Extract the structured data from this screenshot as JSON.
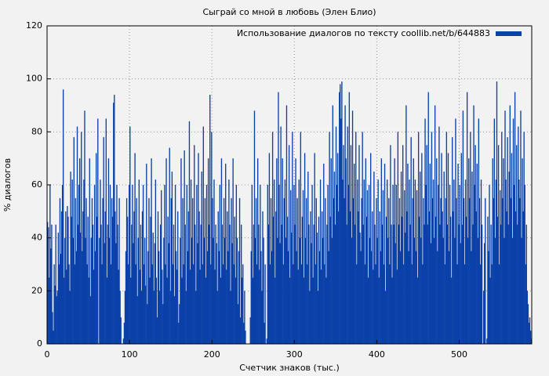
{
  "chart_data": {
    "type": "bar",
    "title": "Сыграй со мной в любовь (Элен Блио)",
    "x_label": "Счетчик знаков (тыс.)",
    "y_label": "% диалогов",
    "xlim": [
      0,
      588
    ],
    "xticks": [
      0,
      100,
      200,
      300,
      400,
      500
    ],
    "ylim": [
      0,
      120
    ],
    "yticks": [
      0,
      20,
      40,
      60,
      80,
      100,
      120
    ],
    "grid": true,
    "legend_position": "upper right",
    "series": [
      {
        "name": "Использование диалогов по тексту coollib.net/b/644883",
        "color": "#0b41a8",
        "values": [
          46,
          44,
          25,
          60,
          36,
          45,
          12,
          5,
          30,
          22,
          45,
          18,
          20,
          42,
          30,
          55,
          34,
          50,
          60,
          96,
          25,
          40,
          50,
          28,
          52,
          48,
          30,
          20,
          65,
          48,
          62,
          40,
          78,
          30,
          55,
          35,
          82,
          45,
          60,
          70,
          42,
          80,
          35,
          50,
          62,
          88,
          40,
          55,
          30,
          48,
          25,
          70,
          18,
          40,
          55,
          45,
          28,
          60,
          35,
          72,
          48,
          85,
          0,
          40,
          62,
          45,
          30,
          55,
          78,
          38,
          50,
          85,
          25,
          45,
          70,
          40,
          60,
          30,
          55,
          48,
          91,
          94,
          50,
          38,
          60,
          45,
          28,
          55,
          20,
          10,
          0,
          0,
          2,
          8,
          20,
          35,
          55,
          48,
          30,
          60,
          82,
          25,
          45,
          60,
          38,
          50,
          72,
          30,
          55,
          18,
          40,
          62,
          28,
          45,
          20,
          50,
          60,
          30,
          40,
          22,
          68,
          15,
          35,
          55,
          25,
          48,
          70,
          30,
          42,
          20,
          38,
          62,
          25,
          10,
          50,
          35,
          20,
          45,
          58,
          28,
          15,
          40,
          60,
          30,
          70,
          25,
          48,
          38,
          74,
          20,
          55,
          65,
          30,
          45,
          18,
          60,
          35,
          28,
          50,
          8,
          15,
          40,
          70,
          25,
          55,
          30,
          73,
          45,
          20,
          60,
          35,
          50,
          84,
          28,
          62,
          40,
          55,
          30,
          75,
          45,
          20,
          60,
          38,
          72,
          50,
          28,
          45,
          65,
          30,
          82,
          40,
          55,
          25,
          60,
          35,
          70,
          45,
          94,
          30,
          80,
          55,
          40,
          62,
          28,
          45,
          38,
          20,
          50,
          35,
          60,
          25,
          70,
          45,
          30,
          55,
          40,
          68,
          28,
          50,
          35,
          62,
          45,
          20,
          55,
          38,
          70,
          30,
          48,
          25,
          60,
          40,
          15,
          35,
          55,
          10,
          45,
          25,
          30,
          8,
          20,
          5,
          0,
          0,
          0,
          0,
          0,
          10,
          35,
          60,
          25,
          45,
          88,
          40,
          55,
          30,
          70,
          45,
          28,
          60,
          35,
          20,
          50,
          40,
          8,
          30,
          0,
          2,
          60,
          45,
          72,
          30,
          55,
          35,
          80,
          48,
          62,
          25,
          50,
          70,
          40,
          95,
          60,
          38,
          82,
          45,
          70,
          30,
          55,
          62,
          40,
          90,
          48,
          35,
          75,
          25,
          58,
          42,
          80,
          30,
          60,
          45,
          70,
          35,
          55,
          28,
          62,
          40,
          80,
          30,
          48,
          58,
          25,
          72,
          40,
          55,
          30,
          65,
          45,
          20,
          50,
          38,
          60,
          25,
          45,
          72,
          30,
          55,
          42,
          20,
          48,
          35,
          62,
          28,
          50,
          40,
          68,
          30,
          55,
          25,
          45,
          60,
          35,
          80,
          48,
          70,
          40,
          90,
          55,
          65,
          45,
          82,
          60,
          72,
          50,
          95,
          98,
          85,
          99,
          62,
          75,
          55,
          90,
          70,
          45,
          82,
          60,
          95,
          50,
          75,
          40,
          88,
          55,
          68,
          45,
          80,
          30,
          62,
          50,
          75,
          42,
          35,
          55,
          80,
          45,
          62,
          30,
          70,
          48,
          58,
          25,
          60,
          40,
          72,
          35,
          50,
          28,
          65,
          45,
          30,
          55,
          40,
          62,
          25,
          50,
          35,
          70,
          45,
          58,
          30,
          68,
          20,
          48,
          62,
          40,
          55,
          30,
          75,
          45,
          25,
          60,
          45,
          70,
          38,
          60,
          28,
          80,
          45,
          55,
          35,
          65,
          48,
          75,
          30,
          58,
          42,
          90,
          50,
          68,
          35,
          62,
          45,
          78,
          30,
          55,
          70,
          40,
          62,
          35,
          58,
          25,
          80,
          48,
          65,
          40,
          72,
          30,
          55,
          45,
          85,
          60,
          75,
          45,
          95,
          50,
          68,
          38,
          80,
          55,
          62,
          40,
          90,
          48,
          70,
          35,
          60,
          82,
          45,
          55,
          72,
          50,
          40,
          65,
          30,
          55,
          80,
          45,
          72,
          35,
          60,
          48,
          25,
          78,
          50,
          62,
          40,
          85,
          55,
          30,
          68,
          45,
          60,
          38,
          72,
          45,
          88,
          55,
          30,
          62,
          48,
          95,
          40,
          70,
          55,
          80,
          35,
          65,
          45,
          90,
          60,
          75,
          50,
          68,
          40,
          85,
          55,
          30,
          62,
          45,
          0,
          20,
          38,
          55,
          0,
          2,
          48,
          35,
          60,
          25,
          45,
          30,
          70,
          55,
          85,
          40,
          62,
          99,
          48,
          75,
          30,
          58,
          45,
          80,
          55,
          70,
          40,
          88,
          62,
          50,
          78,
          45,
          65,
          90,
          55,
          72,
          40,
          85,
          60,
          95,
          50,
          75,
          45,
          82,
          62,
          55,
          88,
          40,
          70,
          50,
          80,
          60,
          30,
          45,
          20,
          15,
          8,
          10,
          5,
          2
        ]
      }
    ]
  }
}
